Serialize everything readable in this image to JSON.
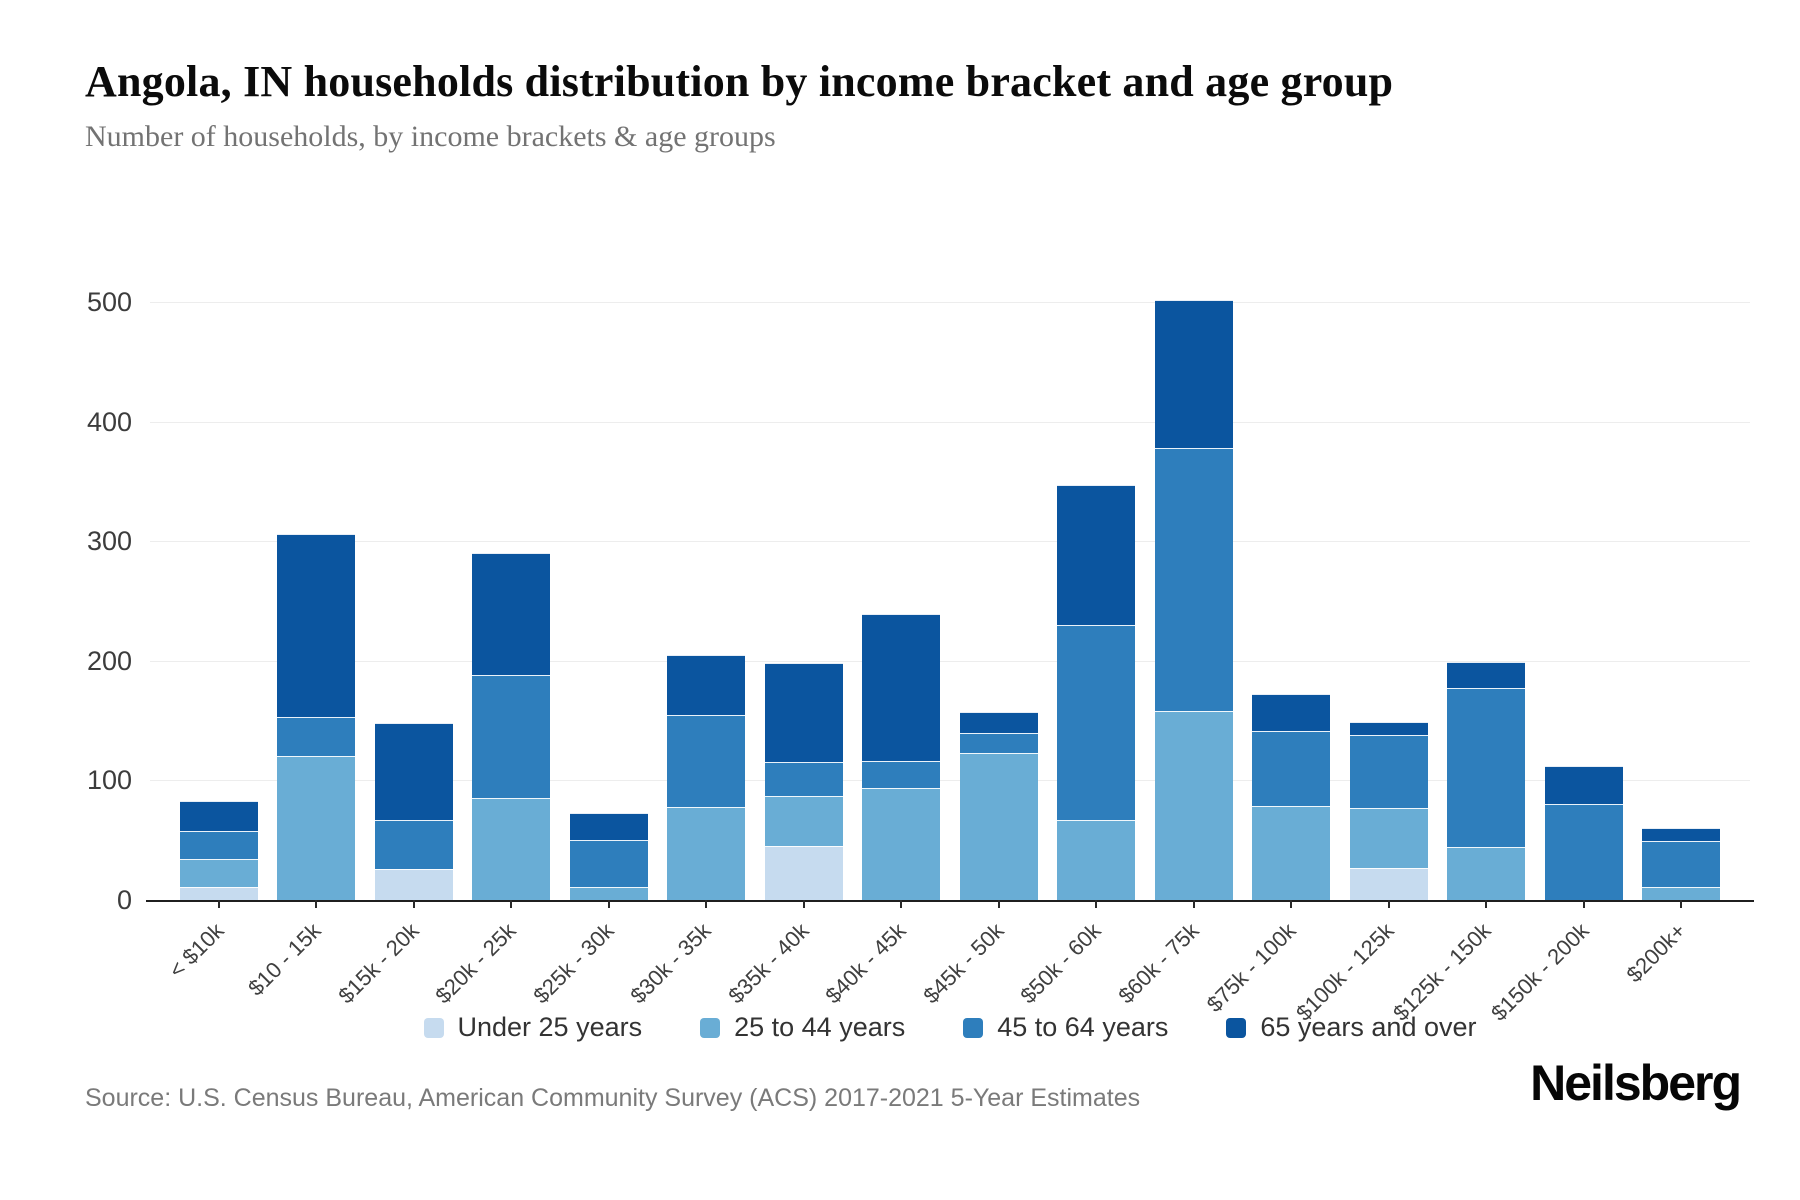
{
  "header": {
    "title": "Angola, IN households distribution by income bracket and age group",
    "subtitle": "Number of households, by income brackets & age groups"
  },
  "chart_data": {
    "type": "bar",
    "stacked": true,
    "title": "Angola, IN households distribution by income bracket and age group",
    "xlabel": "",
    "ylabel": "",
    "ylim": [
      0,
      500
    ],
    "yticks": [
      0,
      100,
      200,
      300,
      400,
      500
    ],
    "grid": true,
    "legend_position": "bottom",
    "categories": [
      "< $10k",
      "$10 - 15k",
      "$15k - 20k",
      "$20k - 25k",
      "$25k - 30k",
      "$30k - 35k",
      "$35k - 40k",
      "$40k - 45k",
      "$45k - 50k",
      "$50k - 60k",
      "$60k - 75k",
      "$75k - 100k",
      "$100k - 125k",
      "$125k - 150k",
      "$150k - 200k",
      "$200k+"
    ],
    "series": [
      {
        "name": "Under 25 years",
        "color": "#c6dbef",
        "values": [
          11,
          0,
          26,
          0,
          0,
          0,
          45,
          0,
          0,
          0,
          0,
          0,
          27,
          0,
          0,
          0
        ]
      },
      {
        "name": "25 to 44 years",
        "color": "#69add5",
        "values": [
          23,
          120,
          0,
          85,
          11,
          78,
          42,
          94,
          123,
          67,
          158,
          79,
          50,
          44,
          0,
          11
        ]
      },
      {
        "name": "45 to 64 years",
        "color": "#2e7ebc",
        "values": [
          24,
          33,
          41,
          103,
          39,
          77,
          28,
          22,
          17,
          163,
          220,
          62,
          61,
          133,
          80,
          38
        ]
      },
      {
        "name": "65 years and over",
        "color": "#0b559f",
        "values": [
          25,
          153,
          81,
          102,
          23,
          50,
          83,
          123,
          17,
          117,
          124,
          31,
          11,
          22,
          32,
          11
        ]
      }
    ],
    "totals": [
      83,
      306,
      148,
      290,
      73,
      205,
      198,
      239,
      157,
      347,
      502,
      172,
      149,
      199,
      112,
      60
    ]
  },
  "footer": {
    "source": "Source: U.S. Census Bureau, American Community Survey (ACS) 2017-2021 5-Year Estimates",
    "logo": "Neilsberg"
  }
}
